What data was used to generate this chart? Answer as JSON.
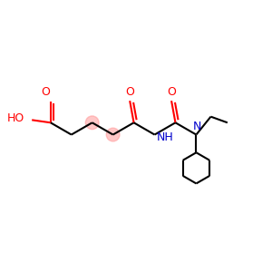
{
  "background_color": "#ffffff",
  "bond_color": "#000000",
  "red_color": "#ff0000",
  "blue_color": "#0000cc",
  "highlight_color": "#ff9999",
  "highlight_alpha": 0.55,
  "bond_width": 1.5,
  "figsize": [
    3.0,
    3.0
  ],
  "dpi": 100,
  "xlim": [
    0,
    10
  ],
  "ylim": [
    0,
    10
  ]
}
